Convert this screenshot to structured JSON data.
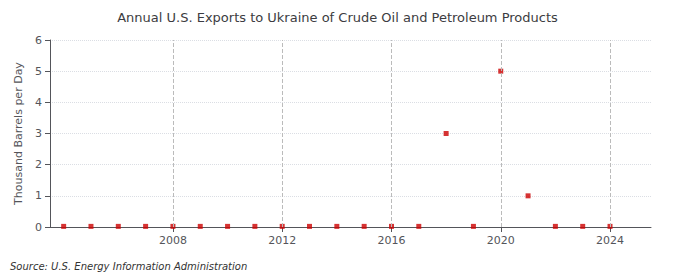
{
  "chart_data": {
    "type": "scatter",
    "title": "Annual U.S. Exports to Ukraine of Crude Oil and Petroleum Products",
    "ylabel": "Thousand Barrels per Day",
    "annotations": [
      "Source: U.S. Energy Information Administration"
    ],
    "x": [
      2004,
      2005,
      2006,
      2007,
      2008,
      2009,
      2010,
      2011,
      2012,
      2013,
      2014,
      2015,
      2016,
      2017,
      2018,
      2019,
      2020,
      2021,
      2022,
      2023,
      2024
    ],
    "values": [
      0.02,
      0.02,
      0.02,
      0.02,
      0.02,
      0.02,
      0.02,
      0.02,
      0.02,
      0.02,
      0.02,
      0.02,
      0.02,
      0.02,
      3.0,
      0.02,
      5.0,
      1.0,
      0.02,
      0.02,
      0.02
    ],
    "color": "#cc0000",
    "marker": "square",
    "xlim": [
      2003.5,
      2025.5
    ],
    "xticks": [
      2008,
      2012,
      2016,
      2020,
      2024
    ],
    "ylim": [
      0,
      6
    ],
    "yticks": [
      0,
      1,
      2,
      3,
      4,
      5,
      6
    ],
    "grid": true
  }
}
